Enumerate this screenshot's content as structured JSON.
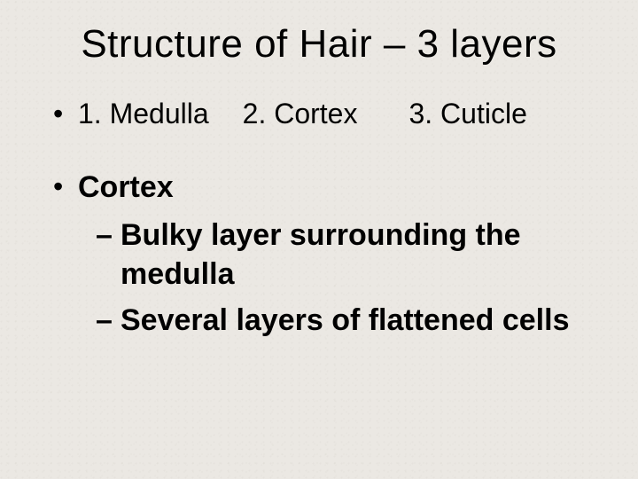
{
  "title": "Structure of Hair – 3 layers",
  "layers": {
    "item1": "1. Medulla",
    "item2": "2. Cortex",
    "item3": "3. Cuticle"
  },
  "section": {
    "header": "Cortex",
    "points": {
      "p1": "Bulky layer surrounding the medulla",
      "p2": "Several layers of flattened cells"
    }
  },
  "style": {
    "background_color": "#ebe8e3",
    "text_color": "#000000",
    "title_fontsize": 44,
    "body_fontsize": 32,
    "bold_fontsize": 34,
    "font_family": "Comic Sans MS"
  }
}
